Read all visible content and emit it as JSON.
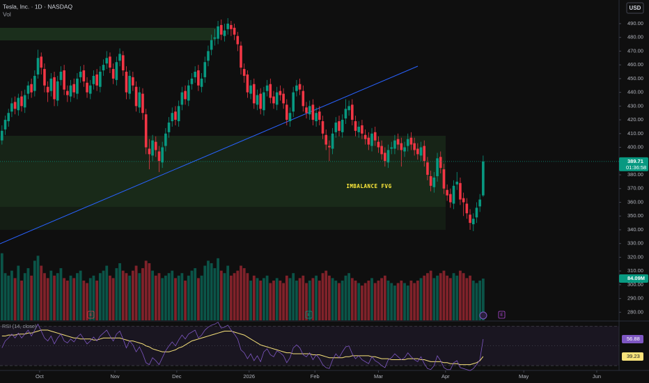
{
  "chart_data": {
    "type": "candlestick",
    "title": "Tesla, Inc. · 1D · NASDAQ",
    "volume_name": "Vol",
    "currency": "USD",
    "annotation": "IMBALANCE FVG",
    "countdown": "01:36:58",
    "event_markers": [
      "E",
      "E",
      "E"
    ],
    "up_color": "#089981",
    "down_color": "#f23645",
    "xlim": [
      -0.6,
      188.3
    ],
    "xticks": [
      {
        "value": 11.5,
        "label": "Oct"
      },
      {
        "value": 34.5,
        "label": "Nov"
      },
      {
        "value": 53.4,
        "label": "Dec"
      },
      {
        "value": 75.5,
        "label": "2026"
      },
      {
        "value": 95.6,
        "label": "Feb"
      },
      {
        "value": 115,
        "label": "Mar"
      },
      {
        "value": 135.5,
        "label": "Apr"
      },
      {
        "value": 159.4,
        "label": "May"
      },
      {
        "value": 181.7,
        "label": "Jun"
      }
    ],
    "ylim": [
      274.1,
      507.2
    ],
    "yticks": [
      {
        "value": 490,
        "label": "490.00"
      },
      {
        "value": 480,
        "label": "480.00"
      },
      {
        "value": 470,
        "label": "470.00"
      },
      {
        "value": 460,
        "label": "460.00"
      },
      {
        "value": 450,
        "label": "450.00"
      },
      {
        "value": 440,
        "label": "440.00"
      },
      {
        "value": 430,
        "label": "430.00"
      },
      {
        "value": 420,
        "label": "420.00"
      },
      {
        "value": 410,
        "label": "410.00"
      },
      {
        "value": 400,
        "label": "400.00"
      },
      {
        "value": 390,
        "label": "390.00"
      },
      {
        "value": 380,
        "label": "380.00"
      },
      {
        "value": 370,
        "label": "370.00"
      },
      {
        "value": 360,
        "label": "360.00"
      },
      {
        "value": 350,
        "label": "350.00"
      },
      {
        "value": 340,
        "label": "340.00"
      },
      {
        "value": 330,
        "label": "330.00"
      },
      {
        "value": 320,
        "label": "320.00"
      },
      {
        "value": 310,
        "label": "310.00"
      },
      {
        "value": 300,
        "label": "300.00"
      },
      {
        "value": 290,
        "label": "290.00"
      },
      {
        "value": 280,
        "label": "280.00"
      }
    ],
    "ohlc": [
      [
        405,
        416,
        402,
        412
      ],
      [
        413,
        423,
        409,
        420
      ],
      [
        419,
        428,
        415,
        425
      ],
      [
        426,
        436,
        422,
        432
      ],
      [
        433,
        437,
        424,
        428
      ],
      [
        427,
        439,
        423,
        436
      ],
      [
        437,
        441,
        426,
        430
      ],
      [
        429,
        442,
        425,
        438
      ],
      [
        439,
        448,
        435,
        445
      ],
      [
        446,
        450,
        436,
        440
      ],
      [
        441,
        456,
        437,
        452
      ],
      [
        453,
        471,
        450,
        465
      ],
      [
        466,
        469,
        453,
        458
      ],
      [
        457,
        461,
        440,
        445
      ],
      [
        444,
        448,
        433,
        440
      ],
      [
        441,
        454,
        437,
        450
      ],
      [
        451,
        455,
        430,
        435
      ],
      [
        434,
        452,
        430,
        448
      ],
      [
        449,
        459,
        445,
        455
      ],
      [
        456,
        460,
        438,
        442
      ],
      [
        441,
        445,
        433,
        438
      ],
      [
        437,
        449,
        433,
        445
      ],
      [
        446,
        450,
        436,
        440
      ],
      [
        439,
        454,
        435,
        450
      ],
      [
        451,
        459,
        447,
        455
      ],
      [
        456,
        460,
        444,
        448
      ],
      [
        447,
        451,
        436,
        440
      ],
      [
        439,
        449,
        435,
        445
      ],
      [
        446,
        456,
        442,
        452
      ],
      [
        453,
        457,
        441,
        445
      ],
      [
        444,
        459,
        440,
        455
      ],
      [
        456,
        464,
        452,
        460
      ],
      [
        461,
        470,
        457,
        465
      ],
      [
        466,
        469,
        454,
        458
      ],
      [
        457,
        461,
        446,
        450
      ],
      [
        449,
        466,
        445,
        462
      ],
      [
        463,
        472,
        459,
        468
      ],
      [
        467,
        470,
        452,
        456
      ],
      [
        455,
        459,
        435,
        440
      ],
      [
        439,
        456,
        435,
        452
      ],
      [
        451,
        455,
        441,
        445
      ],
      [
        444,
        448,
        426,
        430
      ],
      [
        429,
        444,
        425,
        440
      ],
      [
        439,
        443,
        420,
        425
      ],
      [
        424,
        428,
        395,
        400
      ],
      [
        399,
        406,
        384,
        395
      ],
      [
        394,
        409,
        390,
        405
      ],
      [
        404,
        408,
        393,
        398
      ],
      [
        397,
        401,
        382,
        390
      ],
      [
        389,
        404,
        385,
        400
      ],
      [
        401,
        414,
        397,
        410
      ],
      [
        411,
        422,
        407,
        418
      ],
      [
        419,
        429,
        415,
        425
      ],
      [
        426,
        430,
        416,
        420
      ],
      [
        419,
        434,
        415,
        430
      ],
      [
        431,
        444,
        427,
        440
      ],
      [
        441,
        445,
        431,
        435
      ],
      [
        434,
        449,
        430,
        445
      ],
      [
        446,
        454,
        442,
        450
      ],
      [
        451,
        459,
        447,
        455
      ],
      [
        456,
        460,
        441,
        445
      ],
      [
        444,
        454,
        440,
        450
      ],
      [
        451,
        466,
        447,
        462
      ],
      [
        463,
        474,
        459,
        470
      ],
      [
        471,
        482,
        467,
        478
      ],
      [
        479,
        486,
        474,
        480
      ],
      [
        479,
        492,
        475,
        488
      ],
      [
        489,
        493,
        478,
        482
      ],
      [
        481,
        490,
        477,
        485
      ],
      [
        486,
        494,
        482,
        490
      ],
      [
        489,
        492,
        481,
        486
      ],
      [
        487,
        490,
        478,
        482
      ],
      [
        481,
        484,
        470,
        475
      ],
      [
        474,
        477,
        453,
        458
      ],
      [
        457,
        461,
        447,
        452
      ],
      [
        453,
        456,
        436,
        440
      ],
      [
        439,
        449,
        435,
        445
      ],
      [
        446,
        450,
        428,
        432
      ],
      [
        431,
        442,
        427,
        438
      ],
      [
        439,
        443,
        424,
        428
      ],
      [
        427,
        444,
        423,
        440
      ],
      [
        441,
        449,
        437,
        445
      ],
      [
        446,
        450,
        432,
        436
      ],
      [
        437,
        441,
        428,
        432
      ],
      [
        431,
        444,
        427,
        440
      ],
      [
        441,
        445,
        434,
        438
      ],
      [
        439,
        443,
        428,
        432
      ],
      [
        431,
        435,
        416,
        420
      ],
      [
        419,
        429,
        415,
        425
      ],
      [
        426,
        444,
        422,
        440
      ],
      [
        441,
        449,
        437,
        445
      ],
      [
        446,
        450,
        438,
        442
      ],
      [
        441,
        445,
        426,
        430
      ],
      [
        429,
        433,
        421,
        425
      ],
      [
        424,
        434,
        420,
        430
      ],
      [
        431,
        435,
        416,
        420
      ],
      [
        419,
        429,
        415,
        425
      ],
      [
        426,
        430,
        416,
        420
      ],
      [
        419,
        423,
        406,
        410
      ],
      [
        409,
        413,
        398,
        402
      ],
      [
        401,
        405,
        390,
        400
      ],
      [
        399,
        414,
        395,
        410
      ],
      [
        411,
        422,
        407,
        418
      ],
      [
        419,
        423,
        408,
        412
      ],
      [
        411,
        424,
        407,
        420
      ],
      [
        421,
        435,
        417,
        428
      ],
      [
        427,
        434,
        423,
        430
      ],
      [
        431,
        435,
        416,
        420
      ],
      [
        419,
        423,
        408,
        412
      ],
      [
        411,
        419,
        407,
        415
      ],
      [
        416,
        420,
        406,
        410
      ],
      [
        409,
        413,
        402,
        406
      ],
      [
        407,
        411,
        398,
        402
      ],
      [
        401,
        414,
        397,
        410
      ],
      [
        411,
        415,
        401,
        405
      ],
      [
        404,
        408,
        396,
        400
      ],
      [
        401,
        405,
        391,
        395
      ],
      [
        396,
        400,
        386,
        390
      ],
      [
        389,
        402,
        385,
        398
      ],
      [
        399,
        404,
        395,
        400
      ],
      [
        399,
        409,
        395,
        405
      ],
      [
        406,
        410,
        398,
        402
      ],
      [
        403,
        407,
        386,
        398
      ],
      [
        397,
        404,
        393,
        400
      ],
      [
        401,
        410,
        397,
        406
      ],
      [
        407,
        411,
        398,
        402
      ],
      [
        403,
        407,
        394,
        398
      ],
      [
        399,
        403,
        391,
        395
      ],
      [
        394,
        404,
        390,
        400
      ],
      [
        401,
        405,
        386,
        390
      ],
      [
        389,
        393,
        376,
        380
      ],
      [
        379,
        383,
        368,
        372
      ],
      [
        371,
        382,
        367,
        378
      ],
      [
        379,
        396,
        375,
        392
      ],
      [
        393,
        397,
        381,
        385
      ],
      [
        384,
        388,
        366,
        370
      ],
      [
        369,
        373,
        361,
        365
      ],
      [
        366,
        370,
        356,
        360
      ],
      [
        359,
        376,
        355,
        372
      ],
      [
        373,
        382,
        369,
        375
      ],
      [
        374,
        378,
        358,
        362
      ],
      [
        363,
        367,
        350,
        360
      ],
      [
        359,
        363,
        348,
        352
      ],
      [
        351,
        355,
        340,
        345
      ],
      [
        344,
        352,
        339,
        348
      ],
      [
        349,
        360,
        345,
        356
      ],
      [
        357,
        366,
        353,
        362
      ],
      [
        365,
        394,
        364,
        389.71
      ]
    ],
    "volume_ylim": [
      0,
      150
    ],
    "volume": [
      135,
      95,
      90,
      100,
      85,
      110,
      80,
      95,
      105,
      90,
      120,
      130,
      110,
      95,
      85,
      100,
      90,
      95,
      105,
      85,
      80,
      90,
      85,
      95,
      100,
      80,
      75,
      85,
      90,
      80,
      95,
      100,
      110,
      90,
      85,
      105,
      115,
      100,
      95,
      90,
      100,
      110,
      95,
      105,
      120,
      115,
      100,
      90,
      95,
      85,
      90,
      95,
      100,
      85,
      90,
      95,
      80,
      90,
      100,
      105,
      85,
      90,
      110,
      120,
      115,
      105,
      125,
      100,
      95,
      110,
      90,
      95,
      100,
      110,
      105,
      95,
      80,
      90,
      85,
      80,
      85,
      90,
      75,
      80,
      85,
      80,
      75,
      90,
      85,
      95,
      80,
      85,
      90,
      75,
      80,
      85,
      90,
      80,
      95,
      100,
      90,
      85,
      80,
      75,
      80,
      90,
      95,
      85,
      80,
      75,
      70,
      75,
      80,
      85,
      75,
      80,
      85,
      90,
      80,
      75,
      70,
      75,
      80,
      75,
      70,
      80,
      75,
      80,
      85,
      90,
      95,
      100,
      85,
      90,
      95,
      100,
      90,
      85,
      95,
      90,
      100,
      95,
      85,
      90,
      80,
      75,
      80,
      84.09
    ],
    "volume_last_label": "84.09M",
    "rsi": {
      "name": "RSI (14, close)",
      "ylim": [
        25.1,
        74.5
      ],
      "levels": [
        70,
        50,
        30
      ],
      "color": "#7e57c2",
      "ma_color": "#f7e27a",
      "values": [
        48,
        55,
        58,
        62,
        58,
        63,
        58,
        62,
        66,
        60,
        66,
        72,
        65,
        58,
        55,
        60,
        52,
        58,
        62,
        55,
        53,
        57,
        54,
        59,
        62,
        57,
        52,
        55,
        59,
        55,
        60,
        63,
        66,
        60,
        55,
        62,
        65,
        57,
        48,
        55,
        51,
        44,
        49,
        42,
        33,
        31,
        38,
        35,
        31,
        38,
        45,
        50,
        54,
        50,
        56,
        61,
        57,
        62,
        64,
        66,
        58,
        61,
        66,
        69,
        71,
        72,
        74,
        68,
        69,
        71,
        66,
        62,
        57,
        46,
        43,
        37,
        42,
        35,
        40,
        34,
        44,
        47,
        41,
        39,
        45,
        43,
        40,
        33,
        38,
        48,
        51,
        48,
        41,
        39,
        43,
        36,
        41,
        37,
        31,
        28,
        27,
        36,
        42,
        38,
        44,
        49,
        50,
        42,
        37,
        40,
        36,
        34,
        32,
        39,
        35,
        33,
        30,
        28,
        36,
        38,
        42,
        39,
        36,
        38,
        43,
        39,
        36,
        34,
        39,
        32,
        27,
        26,
        30,
        40,
        35,
        28,
        26,
        26,
        33,
        35,
        28,
        27,
        26,
        25,
        27,
        31,
        36,
        56.88
      ],
      "ma": [
        60,
        60,
        61,
        61,
        61,
        62,
        62,
        62,
        63,
        63,
        64,
        65,
        66,
        66,
        66,
        65,
        64,
        63,
        62,
        61,
        60,
        59,
        58,
        58,
        57,
        57,
        57,
        57,
        56,
        56,
        57,
        58,
        58,
        58,
        58,
        58,
        58,
        57,
        56,
        55,
        55,
        54,
        53,
        52,
        50,
        49,
        47,
        46,
        45,
        44,
        44,
        44,
        45,
        46,
        48,
        49,
        51,
        53,
        55,
        56,
        57,
        58,
        59,
        60,
        61,
        62,
        63,
        64,
        65,
        65,
        65,
        64,
        63,
        62,
        61,
        59,
        57,
        55,
        53,
        51,
        50,
        49,
        48,
        47,
        46,
        45,
        44,
        43,
        43,
        42,
        42,
        42,
        42,
        42,
        42,
        41,
        41,
        41,
        40,
        39,
        38,
        38,
        38,
        38,
        38,
        39,
        39,
        40,
        40,
        40,
        40,
        40,
        40,
        39,
        39,
        38,
        37,
        37,
        37,
        36,
        36,
        36,
        36,
        36,
        37,
        37,
        37,
        37,
        36,
        36,
        35,
        34,
        34,
        34,
        34,
        33,
        33,
        32,
        32,
        32,
        31,
        31,
        31,
        31,
        32,
        33,
        35,
        39.23
      ]
    }
  }
}
